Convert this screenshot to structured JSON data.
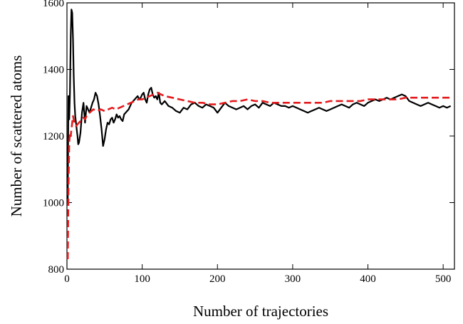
{
  "chart_data": {
    "type": "line",
    "xlabel": "Number of trajectories",
    "ylabel": "Number of scattered atoms",
    "xlim": [
      0,
      515
    ],
    "ylim": [
      800,
      1600
    ],
    "xticks": [
      0,
      100,
      200,
      300,
      400,
      500
    ],
    "yticks": [
      800,
      1000,
      1200,
      1400,
      1600
    ],
    "grid": false,
    "series": [
      {
        "style": "solid",
        "color": "#000000",
        "x": [
          1,
          2,
          3,
          4,
          5,
          6,
          7,
          8,
          9,
          10,
          11,
          12,
          13,
          14,
          15,
          16,
          18,
          20,
          22,
          24,
          26,
          28,
          30,
          32,
          34,
          36,
          38,
          40,
          42,
          44,
          46,
          48,
          50,
          52,
          54,
          56,
          58,
          60,
          62,
          64,
          66,
          68,
          70,
          72,
          74,
          76,
          78,
          80,
          82,
          84,
          86,
          88,
          90,
          92,
          94,
          96,
          98,
          100,
          102,
          104,
          106,
          108,
          110,
          112,
          114,
          116,
          118,
          120,
          122,
          124,
          126,
          128,
          130,
          135,
          140,
          145,
          150,
          155,
          160,
          165,
          170,
          175,
          180,
          185,
          190,
          195,
          200,
          205,
          210,
          215,
          220,
          225,
          230,
          235,
          240,
          245,
          250,
          255,
          260,
          265,
          270,
          275,
          280,
          285,
          290,
          295,
          300,
          305,
          310,
          315,
          320,
          325,
          330,
          335,
          340,
          345,
          350,
          355,
          360,
          365,
          370,
          375,
          380,
          385,
          390,
          395,
          400,
          405,
          410,
          415,
          420,
          425,
          430,
          435,
          440,
          445,
          450,
          455,
          460,
          465,
          470,
          475,
          480,
          485,
          490,
          495,
          500,
          505,
          510
        ],
        "y": [
          1000,
          1320,
          1250,
          1330,
          1500,
          1580,
          1570,
          1490,
          1380,
          1300,
          1260,
          1240,
          1220,
          1200,
          1175,
          1180,
          1210,
          1270,
          1300,
          1240,
          1290,
          1280,
          1270,
          1285,
          1300,
          1310,
          1330,
          1320,
          1295,
          1260,
          1220,
          1170,
          1190,
          1220,
          1240,
          1235,
          1250,
          1255,
          1240,
          1250,
          1265,
          1255,
          1260,
          1250,
          1245,
          1265,
          1270,
          1275,
          1280,
          1290,
          1300,
          1305,
          1310,
          1315,
          1320,
          1310,
          1315,
          1325,
          1330,
          1310,
          1300,
          1325,
          1340,
          1345,
          1325,
          1315,
          1320,
          1310,
          1330,
          1300,
          1295,
          1300,
          1305,
          1290,
          1285,
          1275,
          1270,
          1285,
          1280,
          1295,
          1300,
          1290,
          1285,
          1295,
          1290,
          1285,
          1270,
          1285,
          1300,
          1290,
          1285,
          1280,
          1285,
          1290,
          1280,
          1290,
          1295,
          1285,
          1300,
          1295,
          1290,
          1300,
          1295,
          1290,
          1290,
          1285,
          1290,
          1285,
          1280,
          1275,
          1270,
          1275,
          1280,
          1285,
          1280,
          1275,
          1280,
          1285,
          1290,
          1295,
          1290,
          1285,
          1295,
          1300,
          1295,
          1290,
          1300,
          1305,
          1310,
          1305,
          1310,
          1315,
          1310,
          1315,
          1320,
          1325,
          1320,
          1305,
          1300,
          1295,
          1290,
          1295,
          1300,
          1295,
          1290,
          1285,
          1290,
          1285,
          1290
        ]
      },
      {
        "style": "dashed",
        "color": "#e41a1c",
        "x": [
          1,
          2,
          3,
          4,
          5,
          6,
          7,
          8,
          9,
          10,
          12,
          14,
          16,
          18,
          20,
          22,
          24,
          26,
          28,
          30,
          35,
          40,
          45,
          50,
          55,
          60,
          65,
          70,
          75,
          80,
          85,
          90,
          95,
          100,
          105,
          110,
          115,
          120,
          125,
          130,
          140,
          150,
          160,
          170,
          180,
          190,
          200,
          210,
          220,
          230,
          240,
          250,
          260,
          270,
          280,
          290,
          300,
          310,
          320,
          330,
          340,
          350,
          360,
          370,
          380,
          390,
          400,
          410,
          420,
          430,
          440,
          450,
          460,
          470,
          480,
          490,
          500,
          505,
          510
        ],
        "y": [
          830,
          1050,
          1180,
          1210,
          1200,
          1220,
          1240,
          1260,
          1250,
          1240,
          1230,
          1235,
          1240,
          1245,
          1250,
          1255,
          1250,
          1260,
          1265,
          1270,
          1280,
          1275,
          1280,
          1275,
          1280,
          1285,
          1280,
          1285,
          1290,
          1295,
          1300,
          1305,
          1310,
          1310,
          1315,
          1320,
          1325,
          1330,
          1325,
          1320,
          1315,
          1310,
          1305,
          1300,
          1300,
          1295,
          1295,
          1300,
          1305,
          1305,
          1310,
          1305,
          1305,
          1300,
          1300,
          1300,
          1300,
          1300,
          1300,
          1300,
          1300,
          1305,
          1305,
          1305,
          1305,
          1305,
          1310,
          1310,
          1310,
          1310,
          1310,
          1315,
          1315,
          1315,
          1315,
          1315,
          1315,
          1315,
          1315
        ]
      }
    ]
  }
}
